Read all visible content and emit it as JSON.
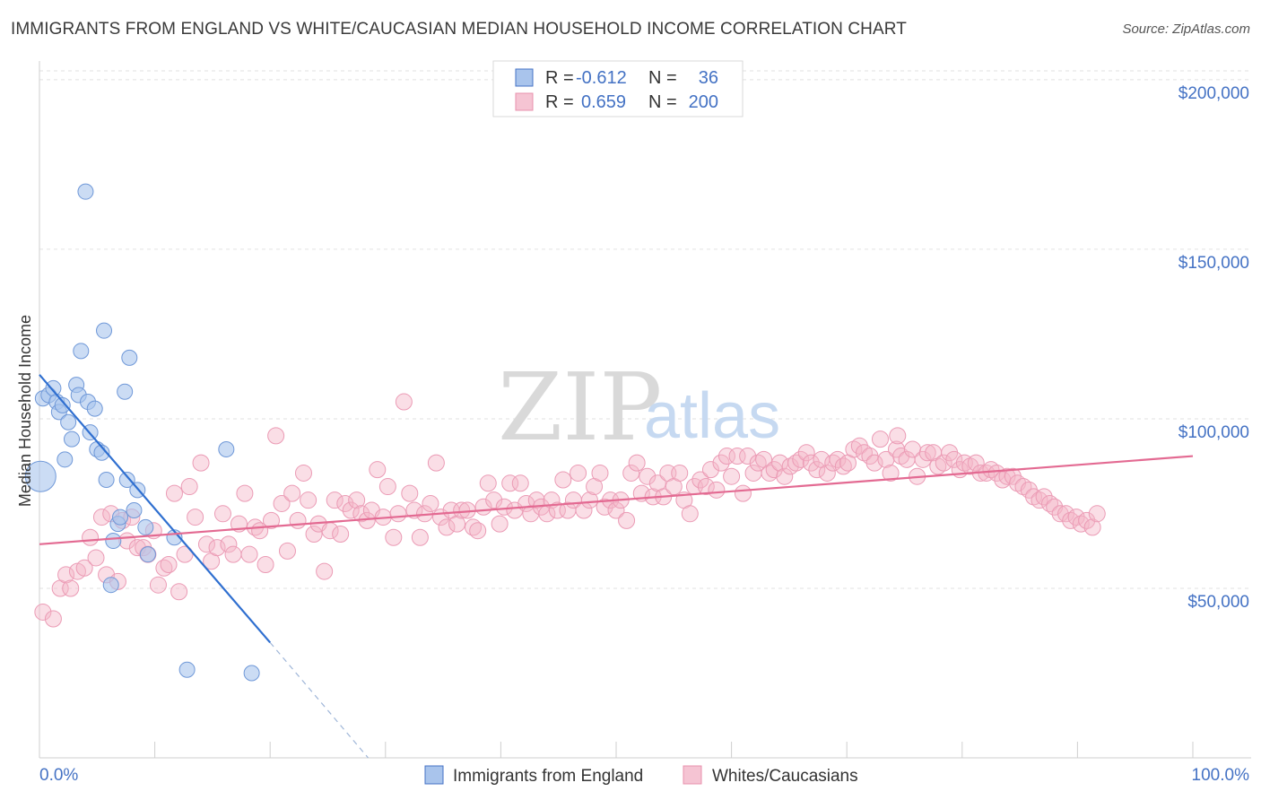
{
  "title": "IMMIGRANTS FROM ENGLAND VS WHITE/CAUCASIAN MEDIAN HOUSEHOLD INCOME CORRELATION CHART",
  "source": "Source: ZipAtlas.com",
  "watermark": {
    "part1": "ZIP",
    "part2": "atlas"
  },
  "colors": {
    "blue": "#4472c4",
    "blue_fill": "#a9c4ec",
    "blue_line": "#2f6fd0",
    "pink_fill": "#f5b5c8",
    "pink_line": "#e36a92"
  },
  "legend": {
    "rows": [
      {
        "r_label": "R =",
        "r_value": "-0.612",
        "n_label": "N =",
        "n_value": "36"
      },
      {
        "r_label": "R =",
        "r_value": "0.659",
        "n_label": "N =",
        "n_value": "200"
      }
    ]
  },
  "bottom_legend": {
    "series1": "Immigrants from England",
    "series2": "Whites/Caucasians"
  },
  "chart_data": {
    "type": "scatter",
    "ylabel": "Median Household Income",
    "x_edge_labels": [
      "0.0%",
      "100.0%"
    ],
    "y_tick_labels": [
      "$50,000",
      "$100,000",
      "$150,000",
      "$200,000"
    ],
    "y_ticks": [
      50000,
      100000,
      150000,
      200000
    ],
    "xlim": [
      0,
      100
    ],
    "ylim": [
      0,
      205000
    ],
    "grid": true,
    "series": [
      {
        "name": "Immigrants from England",
        "points": [
          [
            0.1,
            83000
          ],
          [
            0.3,
            106000
          ],
          [
            0.8,
            107000
          ],
          [
            1.2,
            109000
          ],
          [
            1.5,
            105000
          ],
          [
            1.7,
            102000
          ],
          [
            2.0,
            104000
          ],
          [
            2.2,
            88000
          ],
          [
            2.5,
            99000
          ],
          [
            2.8,
            94000
          ],
          [
            3.2,
            110000
          ],
          [
            3.4,
            107000
          ],
          [
            3.6,
            120000
          ],
          [
            4.0,
            167000
          ],
          [
            4.2,
            105000
          ],
          [
            4.4,
            96000
          ],
          [
            4.8,
            103000
          ],
          [
            5.0,
            91000
          ],
          [
            5.4,
            90000
          ],
          [
            5.6,
            126000
          ],
          [
            5.8,
            82000
          ],
          [
            6.2,
            51000
          ],
          [
            6.4,
            64000
          ],
          [
            6.8,
            69000
          ],
          [
            7.0,
            71000
          ],
          [
            7.4,
            108000
          ],
          [
            7.6,
            82000
          ],
          [
            7.8,
            118000
          ],
          [
            8.2,
            73000
          ],
          [
            8.5,
            79000
          ],
          [
            9.2,
            68000
          ],
          [
            9.4,
            60000
          ],
          [
            11.7,
            65000
          ],
          [
            12.8,
            26000
          ],
          [
            16.2,
            91000
          ],
          [
            18.4,
            25000
          ]
        ],
        "trend": {
          "x": [
            0,
            20
          ],
          "y": [
            113000,
            34000
          ]
        },
        "trend_dashed": {
          "x": [
            20,
            28.5
          ],
          "y": [
            34000,
            0
          ]
        }
      },
      {
        "name": "Whites/Caucasians",
        "points": [
          [
            0.3,
            43000
          ],
          [
            1.2,
            41000
          ],
          [
            1.8,
            50000
          ],
          [
            2.3,
            54000
          ],
          [
            2.7,
            50000
          ],
          [
            3.3,
            55000
          ],
          [
            3.9,
            56000
          ],
          [
            4.4,
            65000
          ],
          [
            4.9,
            59000
          ],
          [
            5.4,
            71000
          ],
          [
            5.8,
            54000
          ],
          [
            6.2,
            72000
          ],
          [
            6.8,
            52000
          ],
          [
            7.2,
            70000
          ],
          [
            7.6,
            64000
          ],
          [
            8.0,
            71000
          ],
          [
            8.5,
            62000
          ],
          [
            9.0,
            62000
          ],
          [
            9.4,
            60000
          ],
          [
            9.9,
            67000
          ],
          [
            10.3,
            51000
          ],
          [
            10.8,
            56000
          ],
          [
            11.2,
            57000
          ],
          [
            11.7,
            78000
          ],
          [
            12.1,
            49000
          ],
          [
            12.6,
            60000
          ],
          [
            13.0,
            80000
          ],
          [
            13.5,
            71000
          ],
          [
            14.0,
            87000
          ],
          [
            14.5,
            63000
          ],
          [
            14.9,
            58000
          ],
          [
            15.4,
            62000
          ],
          [
            15.9,
            72000
          ],
          [
            16.4,
            63000
          ],
          [
            16.8,
            60000
          ],
          [
            17.3,
            69000
          ],
          [
            17.8,
            78000
          ],
          [
            18.2,
            60000
          ],
          [
            18.7,
            68000
          ],
          [
            19.1,
            67000
          ],
          [
            19.6,
            57000
          ],
          [
            20.1,
            70000
          ],
          [
            20.5,
            95000
          ],
          [
            21.0,
            75000
          ],
          [
            21.5,
            61000
          ],
          [
            21.9,
            78000
          ],
          [
            22.4,
            70000
          ],
          [
            22.9,
            84000
          ],
          [
            23.3,
            76000
          ],
          [
            23.8,
            66000
          ],
          [
            24.2,
            69000
          ],
          [
            24.7,
            55000
          ],
          [
            25.2,
            67000
          ],
          [
            25.6,
            76000
          ],
          [
            26.1,
            66000
          ],
          [
            26.5,
            75000
          ],
          [
            27.0,
            73000
          ],
          [
            27.5,
            76000
          ],
          [
            27.9,
            72000
          ],
          [
            28.4,
            70000
          ],
          [
            28.8,
            73000
          ],
          [
            29.3,
            85000
          ],
          [
            29.8,
            71000
          ],
          [
            30.2,
            80000
          ],
          [
            30.7,
            65000
          ],
          [
            31.1,
            72000
          ],
          [
            31.6,
            105000
          ],
          [
            32.1,
            78000
          ],
          [
            32.5,
            73000
          ],
          [
            33.0,
            65000
          ],
          [
            33.4,
            72000
          ],
          [
            33.9,
            75000
          ],
          [
            34.4,
            87000
          ],
          [
            34.8,
            71000
          ],
          [
            35.3,
            68000
          ],
          [
            35.7,
            73000
          ],
          [
            36.2,
            69000
          ],
          [
            36.6,
            73000
          ],
          [
            37.1,
            73000
          ],
          [
            37.6,
            68000
          ],
          [
            38.0,
            67000
          ],
          [
            38.5,
            74000
          ],
          [
            38.9,
            81000
          ],
          [
            39.4,
            76000
          ],
          [
            39.9,
            69000
          ],
          [
            40.3,
            74000
          ],
          [
            40.8,
            81000
          ],
          [
            41.2,
            73000
          ],
          [
            41.7,
            81000
          ],
          [
            42.2,
            75000
          ],
          [
            42.6,
            72000
          ],
          [
            43.1,
            76000
          ],
          [
            43.5,
            74000
          ],
          [
            44.0,
            72000
          ],
          [
            44.4,
            76000
          ],
          [
            44.9,
            73000
          ],
          [
            45.4,
            82000
          ],
          [
            45.8,
            73000
          ],
          [
            46.3,
            76000
          ],
          [
            46.7,
            84000
          ],
          [
            47.2,
            73000
          ],
          [
            47.7,
            76000
          ],
          [
            48.1,
            80000
          ],
          [
            48.6,
            84000
          ],
          [
            49.0,
            74000
          ],
          [
            49.5,
            76000
          ],
          [
            50.0,
            73000
          ],
          [
            50.4,
            76000
          ],
          [
            50.9,
            70000
          ],
          [
            51.3,
            84000
          ],
          [
            51.8,
            87000
          ],
          [
            52.2,
            78000
          ],
          [
            52.7,
            83000
          ],
          [
            53.2,
            77000
          ],
          [
            53.6,
            81000
          ],
          [
            54.1,
            77000
          ],
          [
            54.5,
            84000
          ],
          [
            55.0,
            80000
          ],
          [
            55.5,
            84000
          ],
          [
            55.9,
            76000
          ],
          [
            56.4,
            72000
          ],
          [
            56.8,
            80000
          ],
          [
            57.3,
            82000
          ],
          [
            57.8,
            80000
          ],
          [
            58.2,
            85000
          ],
          [
            58.7,
            79000
          ],
          [
            59.1,
            87000
          ],
          [
            59.6,
            89000
          ],
          [
            60.0,
            83000
          ],
          [
            60.5,
            89000
          ],
          [
            61.0,
            78000
          ],
          [
            61.4,
            89000
          ],
          [
            61.9,
            84000
          ],
          [
            62.3,
            87000
          ],
          [
            62.8,
            88000
          ],
          [
            63.3,
            84000
          ],
          [
            63.7,
            85000
          ],
          [
            64.2,
            87000
          ],
          [
            64.6,
            83000
          ],
          [
            65.1,
            86000
          ],
          [
            65.6,
            87000
          ],
          [
            66.0,
            88000
          ],
          [
            66.5,
            90000
          ],
          [
            66.9,
            87000
          ],
          [
            67.4,
            85000
          ],
          [
            67.8,
            88000
          ],
          [
            68.3,
            84000
          ],
          [
            68.8,
            87000
          ],
          [
            69.2,
            88000
          ],
          [
            69.7,
            86000
          ],
          [
            70.1,
            87000
          ],
          [
            70.6,
            91000
          ],
          [
            71.1,
            92000
          ],
          [
            71.5,
            90000
          ],
          [
            72.0,
            89000
          ],
          [
            72.4,
            87000
          ],
          [
            72.9,
            94000
          ],
          [
            73.4,
            88000
          ],
          [
            73.8,
            84000
          ],
          [
            74.3,
            91000
          ],
          [
            74.7,
            89000
          ],
          [
            75.2,
            88000
          ],
          [
            75.7,
            91000
          ],
          [
            76.1,
            83000
          ],
          [
            76.6,
            88000
          ],
          [
            77.0,
            90000
          ],
          [
            77.5,
            90000
          ],
          [
            77.9,
            86000
          ],
          [
            78.4,
            87000
          ],
          [
            78.9,
            90000
          ],
          [
            79.3,
            88000
          ],
          [
            79.8,
            85000
          ],
          [
            80.2,
            87000
          ],
          [
            80.7,
            86000
          ],
          [
            81.2,
            87000
          ],
          [
            81.6,
            84000
          ],
          [
            82.1,
            84000
          ],
          [
            82.5,
            85000
          ],
          [
            83.0,
            84000
          ],
          [
            83.5,
            82000
          ],
          [
            83.9,
            83000
          ],
          [
            84.4,
            83000
          ],
          [
            84.8,
            81000
          ],
          [
            85.3,
            80000
          ],
          [
            85.8,
            79000
          ],
          [
            86.2,
            77000
          ],
          [
            86.7,
            76000
          ],
          [
            87.1,
            77000
          ],
          [
            87.6,
            75000
          ],
          [
            88.0,
            74000
          ],
          [
            88.5,
            72000
          ],
          [
            89.0,
            72000
          ],
          [
            89.4,
            70000
          ],
          [
            89.9,
            71000
          ],
          [
            90.3,
            69000
          ],
          [
            90.8,
            70000
          ],
          [
            91.3,
            68000
          ],
          [
            91.7,
            72000
          ],
          [
            74.4,
            95000
          ]
        ],
        "trend": {
          "x": [
            0,
            100
          ],
          "y": [
            63000,
            89000
          ]
        }
      }
    ]
  }
}
